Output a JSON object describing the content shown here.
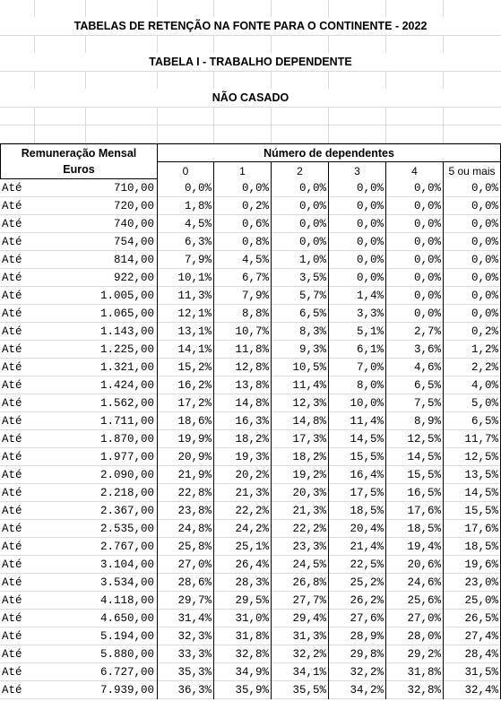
{
  "header": {
    "title": "TABELAS DE RETENÇÃO NA FONTE PARA  O CONTINENTE - 2022",
    "subtitle": "TABELA I - TRABALHO DEPENDENTE",
    "section": "NÃO CASADO"
  },
  "table": {
    "label_line1": "Remuneração Mensal",
    "label_line2": "Euros",
    "group": "Número de dependentes",
    "columns": [
      "0",
      "1",
      "2",
      "3",
      "4",
      "5 ou mais"
    ],
    "rows": [
      [
        "Até",
        "710,00",
        "0,0%",
        "0,0%",
        "0,0%",
        "0,0%",
        "0,0%",
        "0,0%"
      ],
      [
        "Até",
        "720,00",
        "1,8%",
        "0,2%",
        "0,0%",
        "0,0%",
        "0,0%",
        "0,0%"
      ],
      [
        "Até",
        "740,00",
        "4,5%",
        "0,6%",
        "0,0%",
        "0,0%",
        "0,0%",
        "0,0%"
      ],
      [
        "Até",
        "754,00",
        "6,3%",
        "0,8%",
        "0,0%",
        "0,0%",
        "0,0%",
        "0,0%"
      ],
      [
        "Até",
        "814,00",
        "7,9%",
        "4,5%",
        "1,0%",
        "0,0%",
        "0,0%",
        "0,0%"
      ],
      [
        "Até",
        "922,00",
        "10,1%",
        "6,7%",
        "3,5%",
        "0,0%",
        "0,0%",
        "0,0%"
      ],
      [
        "Até",
        "1.005,00",
        "11,3%",
        "7,9%",
        "5,7%",
        "1,4%",
        "0,0%",
        "0,0%"
      ],
      [
        "Até",
        "1.065,00",
        "12,1%",
        "8,8%",
        "6,5%",
        "3,3%",
        "0,0%",
        "0,0%"
      ],
      [
        "Até",
        "1.143,00",
        "13,1%",
        "10,7%",
        "8,3%",
        "5,1%",
        "2,7%",
        "0,2%"
      ],
      [
        "Até",
        "1.225,00",
        "14,1%",
        "11,8%",
        "9,3%",
        "6,1%",
        "3,6%",
        "1,2%"
      ],
      [
        "Até",
        "1.321,00",
        "15,2%",
        "12,8%",
        "10,5%",
        "7,0%",
        "4,6%",
        "2,2%"
      ],
      [
        "Até",
        "1.424,00",
        "16,2%",
        "13,8%",
        "11,4%",
        "8,0%",
        "6,5%",
        "4,0%"
      ],
      [
        "Até",
        "1.562,00",
        "17,2%",
        "14,8%",
        "12,3%",
        "10,0%",
        "7,5%",
        "5,0%"
      ],
      [
        "Até",
        "1.711,00",
        "18,6%",
        "16,3%",
        "14,8%",
        "11,4%",
        "8,9%",
        "6,5%"
      ],
      [
        "Até",
        "1.870,00",
        "19,9%",
        "18,2%",
        "17,3%",
        "14,5%",
        "12,5%",
        "11,7%"
      ],
      [
        "Até",
        "1.977,00",
        "20,9%",
        "19,3%",
        "18,2%",
        "15,5%",
        "14,5%",
        "12,5%"
      ],
      [
        "Até",
        "2.090,00",
        "21,9%",
        "20,2%",
        "19,2%",
        "16,4%",
        "15,5%",
        "13,5%"
      ],
      [
        "Até",
        "2.218,00",
        "22,8%",
        "21,3%",
        "20,3%",
        "17,5%",
        "16,5%",
        "14,5%"
      ],
      [
        "Até",
        "2.367,00",
        "23,8%",
        "22,2%",
        "21,3%",
        "18,5%",
        "17,6%",
        "15,5%"
      ],
      [
        "Até",
        "2.535,00",
        "24,8%",
        "24,2%",
        "22,2%",
        "20,4%",
        "18,5%",
        "17,6%"
      ],
      [
        "Até",
        "2.767,00",
        "25,8%",
        "25,1%",
        "23,3%",
        "21,4%",
        "19,4%",
        "18,5%"
      ],
      [
        "Até",
        "3.104,00",
        "27,0%",
        "26,4%",
        "24,5%",
        "22,5%",
        "20,6%",
        "19,6%"
      ],
      [
        "Até",
        "3.534,00",
        "28,6%",
        "28,3%",
        "26,8%",
        "25,2%",
        "24,6%",
        "23,0%"
      ],
      [
        "Até",
        "4.118,00",
        "29,7%",
        "29,5%",
        "27,7%",
        "26,2%",
        "25,6%",
        "25,0%"
      ],
      [
        "Até",
        "4.650,00",
        "31,4%",
        "31,0%",
        "29,4%",
        "27,6%",
        "27,0%",
        "26,5%"
      ],
      [
        "Até",
        "5.194,00",
        "32,3%",
        "31,8%",
        "31,3%",
        "28,9%",
        "28,0%",
        "27,4%"
      ],
      [
        "Até",
        "5.880,00",
        "33,3%",
        "32,8%",
        "32,2%",
        "29,8%",
        "29,2%",
        "28,4%"
      ],
      [
        "Até",
        "6.727,00",
        "35,3%",
        "34,9%",
        "34,1%",
        "32,2%",
        "31,8%",
        "31,5%"
      ],
      [
        "Até",
        "7.939,00",
        "36,3%",
        "35,9%",
        "35,5%",
        "34,2%",
        "32,8%",
        "32,4%"
      ]
    ]
  }
}
